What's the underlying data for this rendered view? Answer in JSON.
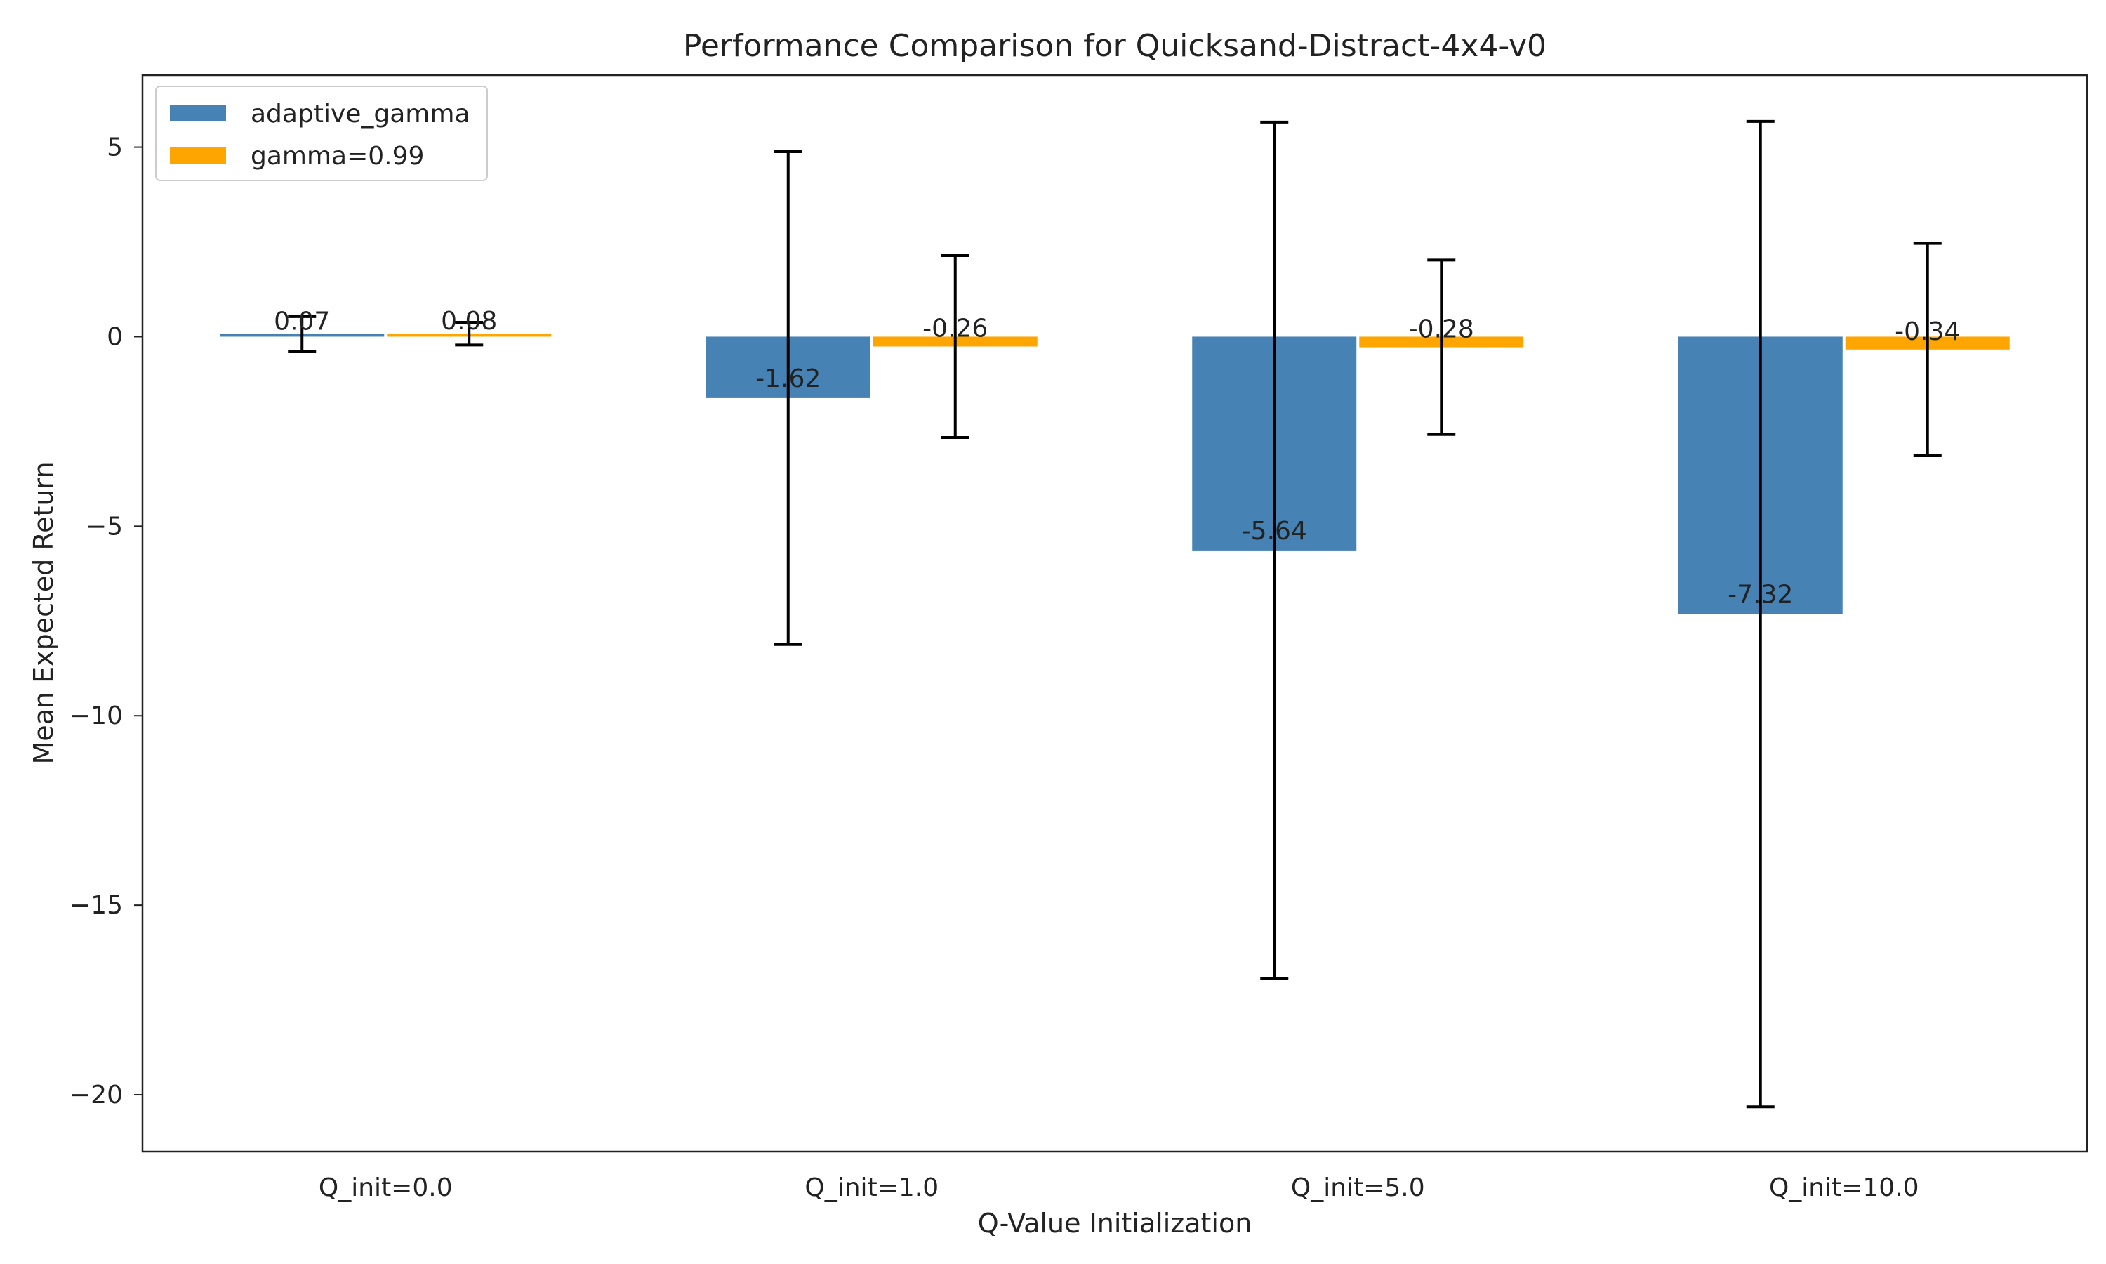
{
  "chart_data": {
    "type": "bar",
    "title": "Performance Comparison for Quicksand-Distract-4x4-v0",
    "xlabel": "Q-Value Initialization",
    "ylabel": "Mean Expected Return",
    "categories": [
      "Q_init=0.0",
      "Q_init=1.0",
      "Q_init=5.0",
      "Q_init=10.0"
    ],
    "series": [
      {
        "name": "adaptive_gamma",
        "color": "#4682b4",
        "values": [
          0.07,
          -1.62,
          -5.64,
          -7.32
        ],
        "value_labels": [
          "0.07",
          "-1.62",
          "-5.64",
          "-7.32"
        ],
        "error": [
          0.46,
          6.5,
          11.3,
          13.0
        ]
      },
      {
        "name": "gamma=0.99",
        "color": "#ffa500",
        "values": [
          0.08,
          -0.26,
          -0.28,
          -0.34
        ],
        "value_labels": [
          "0.08",
          "-0.26",
          "-0.28",
          "-0.34"
        ],
        "error": [
          0.3,
          2.4,
          2.3,
          2.8
        ]
      }
    ],
    "ylim": [
      -21.5,
      6.9
    ],
    "yticks": [
      5,
      0,
      -5,
      -10,
      -15,
      -20
    ],
    "ytick_labels": [
      "5",
      "0",
      "−5",
      "−10",
      "−15",
      "−20"
    ],
    "grid": false,
    "legend_position": "top-left"
  }
}
